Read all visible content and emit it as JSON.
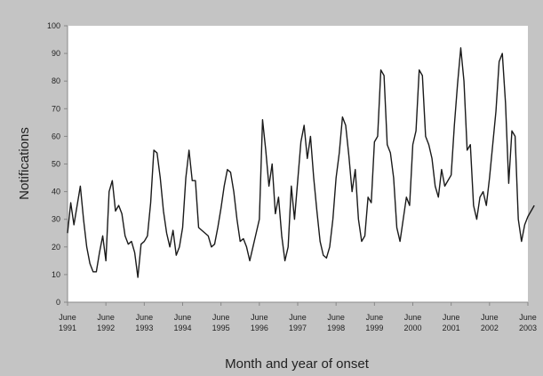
{
  "chart_data": {
    "type": "line",
    "title": "",
    "xlabel": "Month and year of onset",
    "ylabel": "Notifications",
    "ylim": [
      0,
      100
    ],
    "yticks": [
      0,
      10,
      20,
      30,
      40,
      50,
      60,
      70,
      80,
      90,
      100
    ],
    "xticks": [
      {
        "month": "June",
        "year": "1991"
      },
      {
        "month": "June",
        "year": "1992"
      },
      {
        "month": "June",
        "year": "1993"
      },
      {
        "month": "June",
        "year": "1994"
      },
      {
        "month": "June",
        "year": "1995"
      },
      {
        "month": "June",
        "year": "1996"
      },
      {
        "month": "June",
        "year": "1997"
      },
      {
        "month": "June",
        "year": "1998"
      },
      {
        "month": "June",
        "year": "1999"
      },
      {
        "month": "June",
        "year": "2000"
      },
      {
        "month": "June",
        "year": "2001"
      },
      {
        "month": "June",
        "year": "2002"
      },
      {
        "month": "June",
        "year": "2003"
      }
    ],
    "grid": false,
    "legend": "none",
    "line_color": "#1a1a1a",
    "x_start": "June 1991",
    "x_end": "June 2003",
    "series": [
      {
        "values": [
          25,
          36,
          28,
          35,
          42,
          30,
          20,
          14,
          11,
          11,
          18,
          24,
          15,
          40,
          44,
          33,
          35,
          32,
          24,
          21,
          22,
          18,
          9,
          21,
          22,
          24,
          36,
          55,
          54,
          45,
          33,
          25,
          20,
          26,
          17,
          20,
          27,
          45,
          55,
          44,
          44,
          27,
          26,
          25,
          24,
          20,
          21,
          27,
          34,
          42,
          48,
          47,
          40,
          30,
          22,
          23,
          20,
          15,
          20,
          25,
          30,
          66,
          55,
          42,
          50,
          32,
          38,
          24,
          15,
          20,
          42,
          30,
          44,
          58,
          64,
          52,
          60,
          45,
          33,
          22,
          17,
          16,
          20,
          30,
          45,
          54,
          67,
          64,
          53,
          40,
          48,
          30,
          22,
          24,
          38,
          36,
          58,
          60,
          84,
          82,
          57,
          54,
          45,
          27,
          22,
          30,
          38,
          35,
          57,
          62,
          84,
          82,
          60,
          57,
          52,
          42,
          38,
          48,
          42,
          44,
          46,
          64,
          79,
          92,
          80,
          55,
          57,
          35,
          30,
          38,
          40,
          35,
          45,
          57,
          69,
          87,
          90,
          72,
          43,
          62,
          60,
          30,
          22,
          28,
          31,
          33,
          35
        ]
      }
    ]
  }
}
